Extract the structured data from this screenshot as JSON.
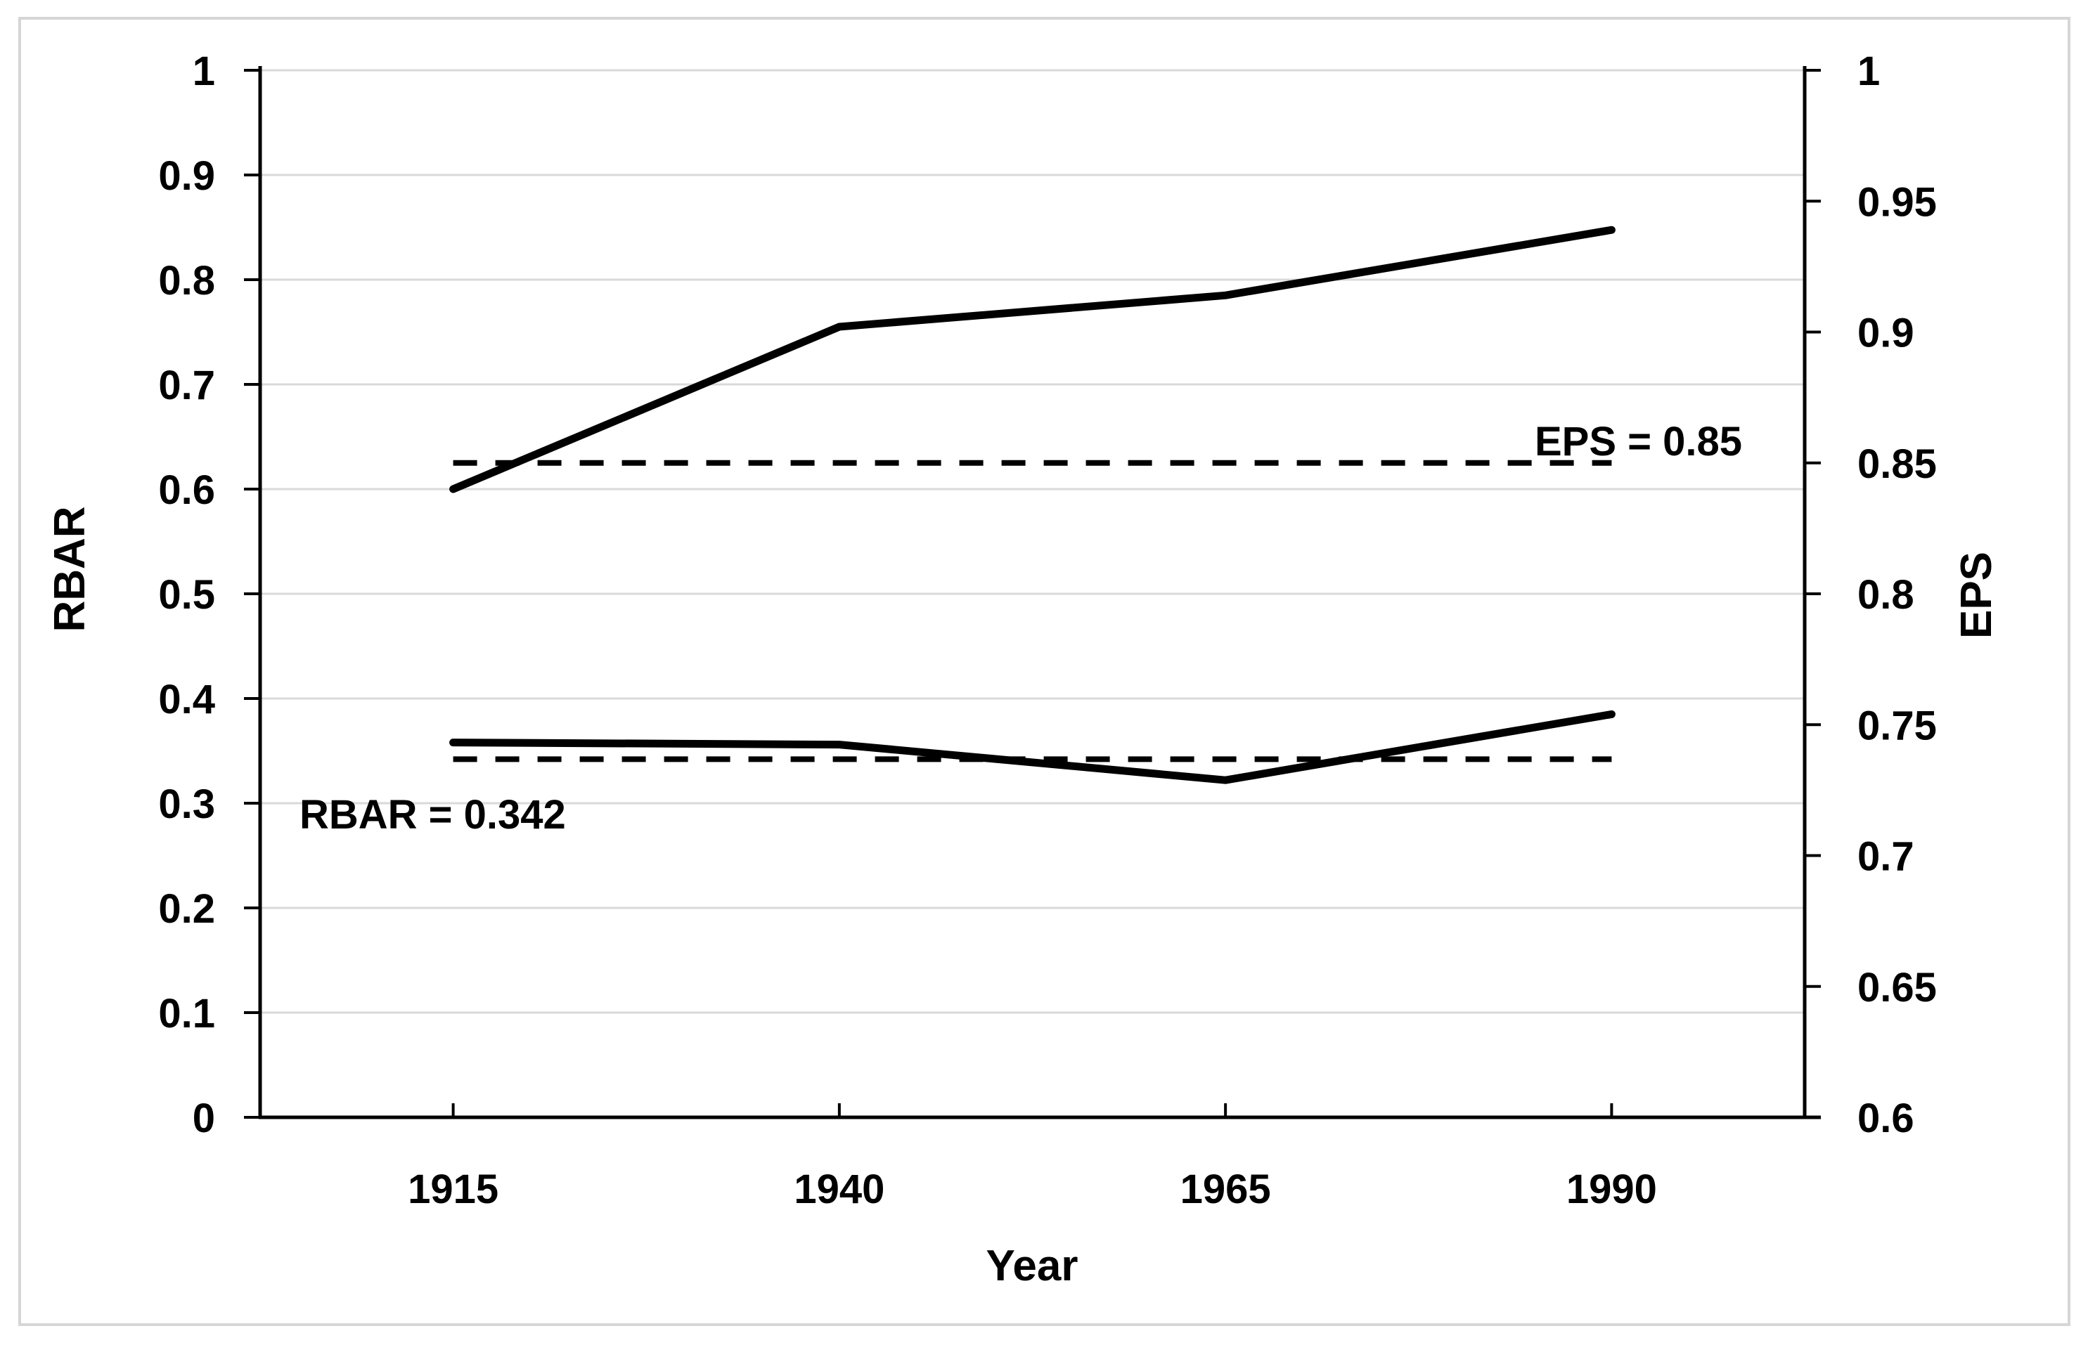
{
  "chart_data": {
    "type": "line",
    "title": "",
    "x": {
      "label": "Year",
      "categories": [
        "1915",
        "1940",
        "1965",
        "1990"
      ]
    },
    "y_left": {
      "label": "RBAR",
      "min": 0,
      "max": 1,
      "tick_step": 0.1,
      "tick_values": [
        1,
        0.9,
        0.8,
        0.7,
        0.6,
        0.5,
        0.4,
        0.3,
        0.2,
        0.1,
        0
      ],
      "tick_labels": [
        "1",
        "0.9",
        "0.8",
        "0.7",
        "0.6",
        "0.5",
        "0.4",
        "0.3",
        "0.2",
        "0.1",
        "0"
      ]
    },
    "y_right": {
      "label": "EPS",
      "min": 0.6,
      "max": 1,
      "tick_step": 0.05,
      "tick_values": [
        1,
        0.95,
        0.9,
        0.85,
        0.8,
        0.75,
        0.7,
        0.65,
        0.6
      ],
      "tick_labels": [
        "1",
        "0.95",
        "0.9",
        "0.85",
        "0.8",
        "0.75",
        "0.7",
        "0.65",
        "0.6"
      ]
    },
    "series": [
      {
        "name": "EPS",
        "axis": "right",
        "style": "solid",
        "values": [
          0.84,
          0.902,
          0.914,
          0.939
        ]
      },
      {
        "name": "RBAR",
        "axis": "left",
        "style": "solid",
        "values": [
          0.358,
          0.356,
          0.322,
          0.385
        ]
      },
      {
        "name": "EPS reference",
        "axis": "right",
        "style": "dashed",
        "values": [
          0.85,
          0.85,
          0.85,
          0.85
        ]
      },
      {
        "name": "RBAR reference",
        "axis": "left",
        "style": "dashed",
        "values": [
          0.342,
          0.342,
          0.342,
          0.342
        ]
      }
    ],
    "annotations": [
      {
        "text": "EPS = 0.85"
      },
      {
        "text": "RBAR = 0.342"
      }
    ],
    "legend": "none",
    "grid": "horizontal",
    "colors": {
      "line": "#000000",
      "grid": "#d9d9d9",
      "frame": "#d6d6d6",
      "background": "#ffffff",
      "text": "#000000"
    }
  }
}
